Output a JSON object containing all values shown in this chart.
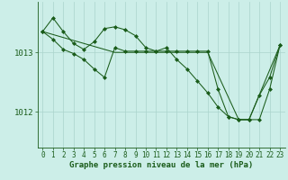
{
  "background_color": "#cceee8",
  "plot_bg_color": "#cceee8",
  "grid_color": "#aad4cc",
  "line_color": "#1a5c1a",
  "marker_color": "#1a5c1a",
  "xlabel": "Graphe pression niveau de la mer (hPa)",
  "xlabel_fontsize": 6.5,
  "tick_fontsize": 5.5,
  "ytick_labels": [
    "1012",
    "1013"
  ],
  "ylim": [
    1011.4,
    1013.85
  ],
  "xlim": [
    -0.5,
    23.5
  ],
  "xticks": [
    0,
    1,
    2,
    3,
    4,
    5,
    6,
    7,
    8,
    9,
    10,
    11,
    12,
    13,
    14,
    15,
    16,
    17,
    18,
    19,
    20,
    21,
    22,
    23
  ],
  "yticks": [
    1012.0,
    1013.0
  ],
  "line1": [
    1013.35,
    1013.58,
    1013.35,
    1013.15,
    1013.05,
    1013.18,
    1013.4,
    1013.43,
    1013.38,
    1013.28,
    1013.08,
    1013.02,
    1013.08,
    1012.88,
    1012.72,
    1012.52,
    1012.32,
    1012.08,
    1011.92,
    1011.87,
    1011.87,
    1012.28,
    1012.58,
    1013.12
  ],
  "line2": [
    1013.35,
    1013.22,
    1013.05,
    1012.98,
    1012.88,
    1012.72,
    1012.58,
    1013.08,
    1013.02,
    1013.02,
    1013.02,
    1013.02,
    1013.02,
    1013.02,
    1013.02,
    1013.02,
    1013.02,
    1012.38,
    1011.92,
    1011.87,
    1011.87,
    1011.87,
    1012.38,
    1013.12
  ],
  "line3_x": [
    0,
    7,
    16,
    19,
    20,
    23
  ],
  "line3_y": [
    1013.35,
    1013.0,
    1013.0,
    1011.87,
    1011.87,
    1013.12
  ]
}
